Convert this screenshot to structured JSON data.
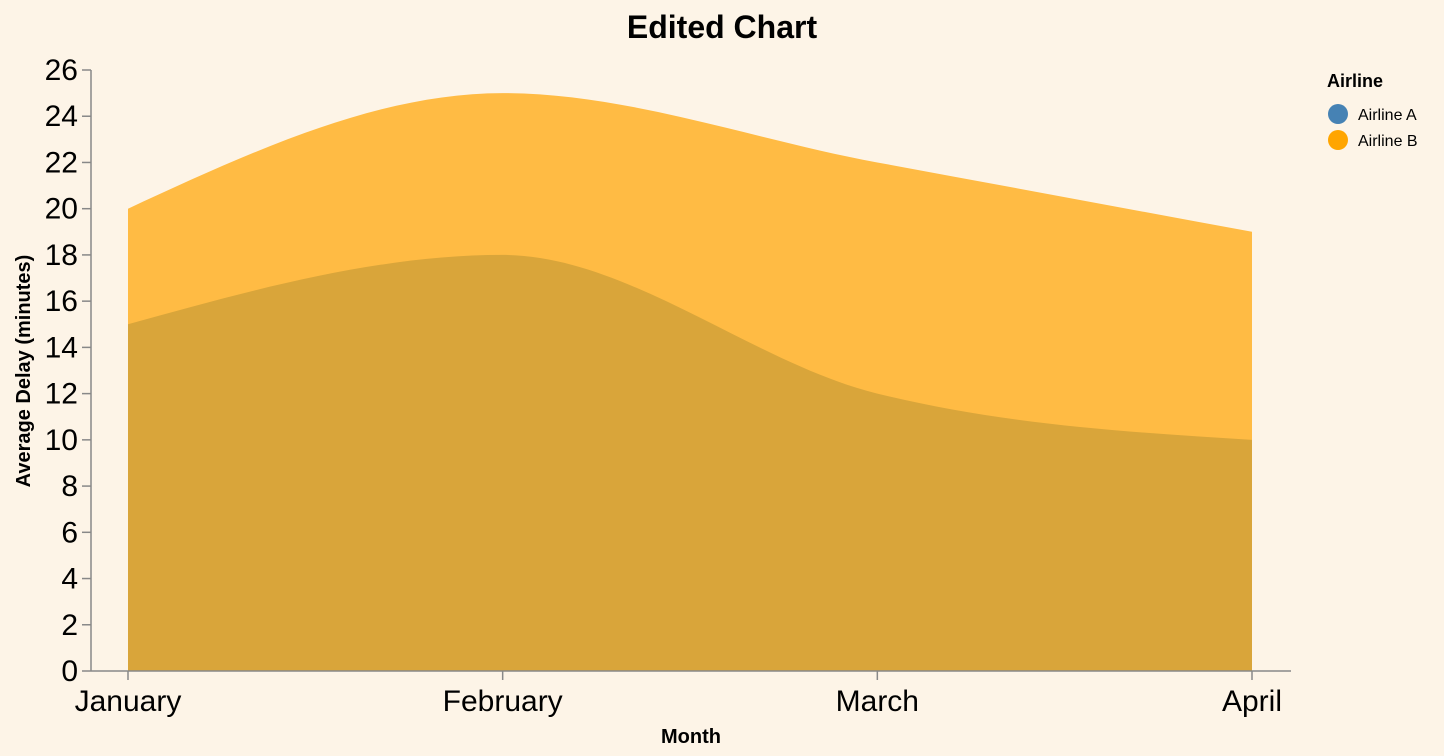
{
  "chart_data": {
    "type": "area",
    "title": "Edited Chart",
    "xlabel": "Month",
    "ylabel": "Average Delay (minutes)",
    "categories": [
      "January",
      "February",
      "March",
      "April"
    ],
    "ylim": [
      0,
      26
    ],
    "yticks": [
      0,
      2,
      4,
      6,
      8,
      10,
      12,
      14,
      16,
      18,
      20,
      22,
      24,
      26
    ],
    "grid": false,
    "legend": {
      "title": "Airline",
      "placement": "top-right",
      "entries": [
        {
          "label": "Airline A",
          "color": "#4682b4"
        },
        {
          "label": "Airline B",
          "color": "#ffa500"
        }
      ]
    },
    "series": [
      {
        "name": "Airline A",
        "values": [
          15,
          18,
          12,
          10
        ],
        "color": "#d9a53a"
      },
      {
        "name": "Airline B",
        "values": [
          20,
          25,
          22,
          19
        ],
        "color": "#ffbb44"
      }
    ]
  }
}
